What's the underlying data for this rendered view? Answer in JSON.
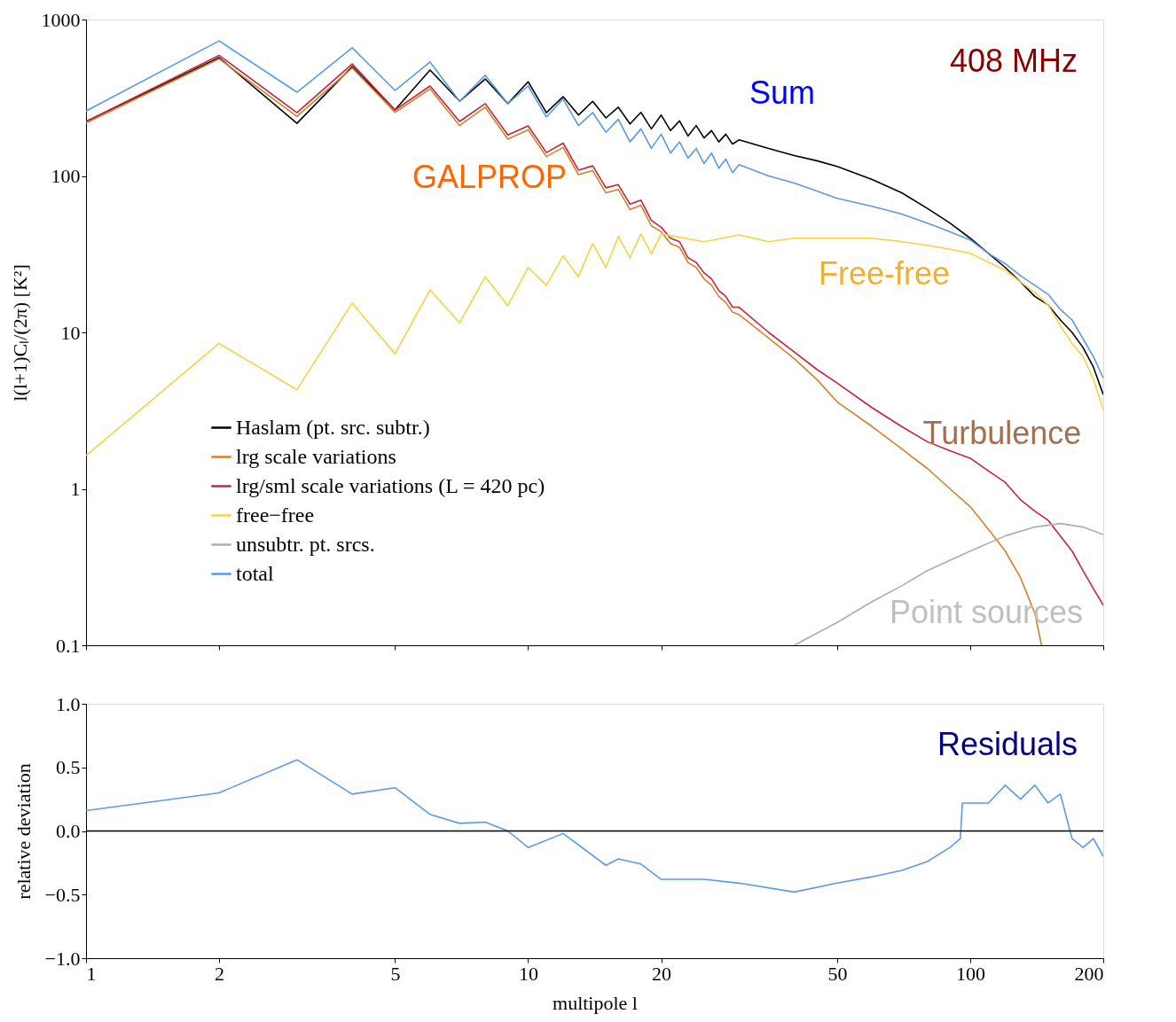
{
  "chart_data": [
    {
      "type": "line",
      "ylabel": "l(l+1)Cₗ/(2π) [K²]",
      "log": "xy",
      "xlim": [
        1,
        200
      ],
      "ylim": [
        0.1,
        1000
      ],
      "xticks": [
        1,
        2,
        5,
        10,
        20,
        50,
        100,
        200
      ],
      "yticks": [
        0.1,
        1,
        10,
        100,
        1000
      ],
      "tick_labels": "y",
      "grid": false,
      "legend": "bottom left",
      "line_style": "solid",
      "marker": "none",
      "annotations": [
        "408 MHz",
        "Sum",
        "GALPROP",
        "Free-free",
        "Turbulence",
        "Point sources"
      ],
      "series": [
        {
          "name": "Haslam (pt. src. subtr.)",
          "color": "#000000",
          "x": [
            1,
            2,
            3,
            4,
            5,
            6,
            7,
            8,
            9,
            10,
            11,
            12,
            13,
            14,
            15,
            16,
            17,
            18,
            19,
            20,
            21,
            22,
            23,
            24,
            25,
            26,
            27,
            28,
            29,
            30,
            35,
            40,
            45,
            50,
            60,
            70,
            80,
            90,
            100,
            110,
            120,
            130,
            140,
            150,
            160,
            170,
            180,
            190,
            200
          ],
          "values": [
            223,
            570,
            217,
            500,
            264,
            475,
            301,
            417,
            290,
            400,
            254,
            321,
            245,
            300,
            235,
            275,
            215,
            255,
            200,
            245,
            195,
            225,
            180,
            210,
            175,
            195,
            165,
            185,
            160,
            170,
            150,
            135,
            125,
            115,
            95,
            78,
            62,
            50,
            40,
            32,
            26,
            21,
            17,
            15,
            12,
            10,
            8,
            6,
            4
          ]
        },
        {
          "name": "lrg scale variations",
          "color": "#d4822a",
          "x": [
            1,
            2,
            3,
            4,
            5,
            6,
            7,
            8,
            9,
            10,
            11,
            12,
            13,
            14,
            15,
            16,
            17,
            18,
            19,
            20,
            21,
            22,
            23,
            24,
            25,
            26,
            27,
            28,
            29,
            30,
            35,
            40,
            45,
            50,
            60,
            70,
            80,
            90,
            100,
            110,
            120,
            130,
            140,
            145
          ],
          "values": [
            218,
            560,
            240,
            490,
            255,
            360,
            210,
            275,
            172,
            197,
            133,
            152,
            102,
            108,
            78,
            82,
            61,
            65,
            48,
            44,
            37,
            35,
            28,
            26,
            22,
            20,
            17,
            15.5,
            13.5,
            13,
            9.2,
            6.8,
            5.0,
            3.6,
            2.5,
            1.8,
            1.35,
            1.0,
            0.77,
            0.55,
            0.4,
            0.27,
            0.16,
            0.1
          ]
        },
        {
          "name": "lrg/sml scale variations (L = 420 pc)",
          "color": "#c8233f",
          "x": [
            1,
            2,
            3,
            4,
            5,
            6,
            7,
            8,
            9,
            10,
            11,
            12,
            13,
            14,
            15,
            16,
            17,
            18,
            19,
            20,
            21,
            22,
            23,
            24,
            25,
            26,
            27,
            28,
            29,
            30,
            35,
            40,
            45,
            50,
            60,
            70,
            80,
            90,
            100,
            110,
            120,
            130,
            140,
            150,
            160,
            170,
            180,
            190,
            200
          ],
          "values": [
            223,
            590,
            254,
            520,
            264,
            376,
            223,
            290,
            183,
            209,
            141,
            162,
            109,
            116,
            84,
            88,
            66,
            70,
            52,
            47,
            40,
            38,
            30,
            28,
            24,
            22,
            18.5,
            17,
            14.5,
            14.5,
            10,
            7.5,
            5.8,
            4.75,
            3.3,
            2.5,
            2.0,
            1.75,
            1.57,
            1.3,
            1.1,
            0.85,
            0.72,
            0.63,
            0.5,
            0.4,
            0.3,
            0.23,
            0.18
          ]
        },
        {
          "name": "free−free",
          "color": "#f5d340",
          "x": [
            1,
            2,
            3,
            4,
            5,
            6,
            7,
            8,
            9,
            10,
            11,
            12,
            13,
            14,
            15,
            16,
            17,
            18,
            19,
            20,
            25,
            30,
            35,
            40,
            50,
            60,
            70,
            80,
            90,
            100,
            110,
            120,
            130,
            140,
            150,
            160,
            170,
            180,
            190,
            200
          ],
          "values": [
            1.63,
            8.5,
            4.3,
            15.4,
            7.3,
            18.7,
            11.5,
            22.7,
            14.8,
            26,
            20,
            30.8,
            22.7,
            36.9,
            26,
            41,
            30,
            42.6,
            31.7,
            42.6,
            38,
            42,
            38,
            40,
            40,
            40,
            38,
            36,
            34,
            32,
            28,
            25,
            21,
            18,
            15,
            11,
            8.5,
            7,
            5,
            3.2
          ]
        },
        {
          "name": "unsubtr. pt. srcs.",
          "color": "#b4aca4",
          "x": [
            40,
            50,
            60,
            70,
            80,
            100,
            120,
            140,
            160,
            180,
            200
          ],
          "values": [
            0.1,
            0.14,
            0.19,
            0.24,
            0.3,
            0.4,
            0.5,
            0.57,
            0.6,
            0.57,
            0.51
          ]
        },
        {
          "name": "total",
          "color": "#5b9be6",
          "x": [
            1,
            2,
            3,
            4,
            5,
            6,
            7,
            8,
            9,
            10,
            11,
            12,
            13,
            14,
            15,
            16,
            17,
            18,
            19,
            20,
            21,
            22,
            23,
            24,
            25,
            26,
            27,
            28,
            29,
            30,
            35,
            40,
            45,
            50,
            60,
            70,
            80,
            90,
            100,
            110,
            120,
            130,
            140,
            150,
            160,
            170,
            180,
            190,
            200
          ],
          "values": [
            260,
            730,
            343,
            660,
            352,
            535,
            300,
            440,
            290,
            376,
            238,
            310,
            210,
            254,
            190,
            230,
            165,
            200,
            150,
            185,
            140,
            165,
            130,
            150,
            120,
            140,
            112,
            128,
            105,
            118,
            100,
            90,
            80,
            72,
            64,
            57,
            50,
            44,
            39,
            32,
            27.5,
            23,
            20,
            17.5,
            14,
            12,
            9.1,
            7,
            5.1
          ]
        }
      ]
    },
    {
      "type": "line",
      "xlabel": "multipole l",
      "ylabel": "relative deviation",
      "log": "x",
      "xlim": [
        1,
        200
      ],
      "ylim": [
        -1,
        1
      ],
      "xticks": [
        1,
        2,
        5,
        10,
        20,
        50,
        100,
        200
      ],
      "yticks": [
        {
          "value": -1,
          "label": "−1.0"
        },
        {
          "value": -0.5,
          "label": "−0.5"
        },
        {
          "value": 0,
          "label": "0.0"
        },
        {
          "value": 0.5,
          "label": "0.5"
        },
        {
          "value": 1,
          "label": "1.0"
        }
      ],
      "grid": false,
      "legend": false,
      "line_style": "solid",
      "marker": "none",
      "annotations": [
        "Residuals"
      ],
      "ref_lines": [
        {
          "axis": "y",
          "value": 0,
          "color": "#000000"
        }
      ],
      "series": [
        {
          "color": "#5b9be6",
          "x": [
            1,
            2,
            3,
            4,
            5,
            6,
            7,
            8,
            9,
            10,
            12,
            15,
            16,
            18,
            20,
            25,
            30,
            40,
            50,
            60,
            70,
            80,
            90,
            95,
            96,
            110,
            120,
            130,
            140,
            150,
            160,
            165,
            170,
            180,
            190,
            200
          ],
          "values": [
            0.16,
            0.3,
            0.56,
            0.29,
            0.34,
            0.13,
            0.06,
            0.07,
            0.0,
            -0.13,
            -0.02,
            -0.27,
            -0.22,
            -0.26,
            -0.38,
            -0.38,
            -0.41,
            -0.48,
            -0.41,
            -0.36,
            -0.31,
            -0.24,
            -0.13,
            -0.06,
            0.22,
            0.22,
            0.36,
            0.25,
            0.36,
            0.22,
            0.29,
            0.11,
            -0.06,
            -0.13,
            -0.06,
            -0.2
          ]
        }
      ]
    }
  ]
}
